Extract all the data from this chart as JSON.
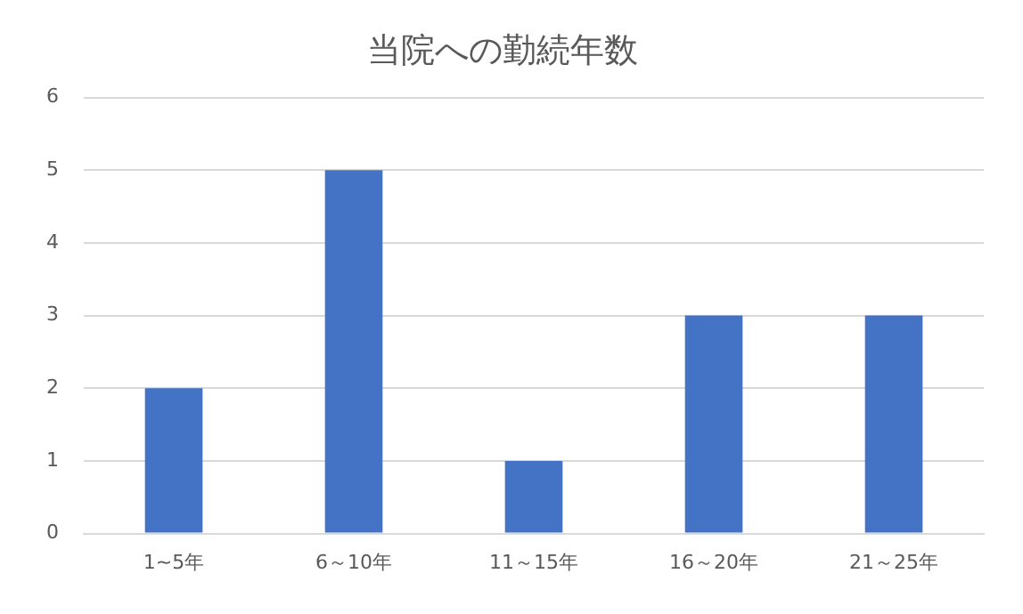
{
  "chart_data": {
    "type": "bar",
    "title": "当院への勤続年数",
    "categories": [
      "1~5年",
      "6～10年",
      "11～15年",
      "16～20年",
      "21～25年"
    ],
    "values": [
      2,
      5,
      1,
      3,
      3
    ],
    "color": "#4472c4",
    "ylim": [
      0,
      6
    ],
    "yticks": [
      0,
      1,
      2,
      3,
      4,
      5,
      6
    ],
    "grid": "y",
    "legend": false
  }
}
